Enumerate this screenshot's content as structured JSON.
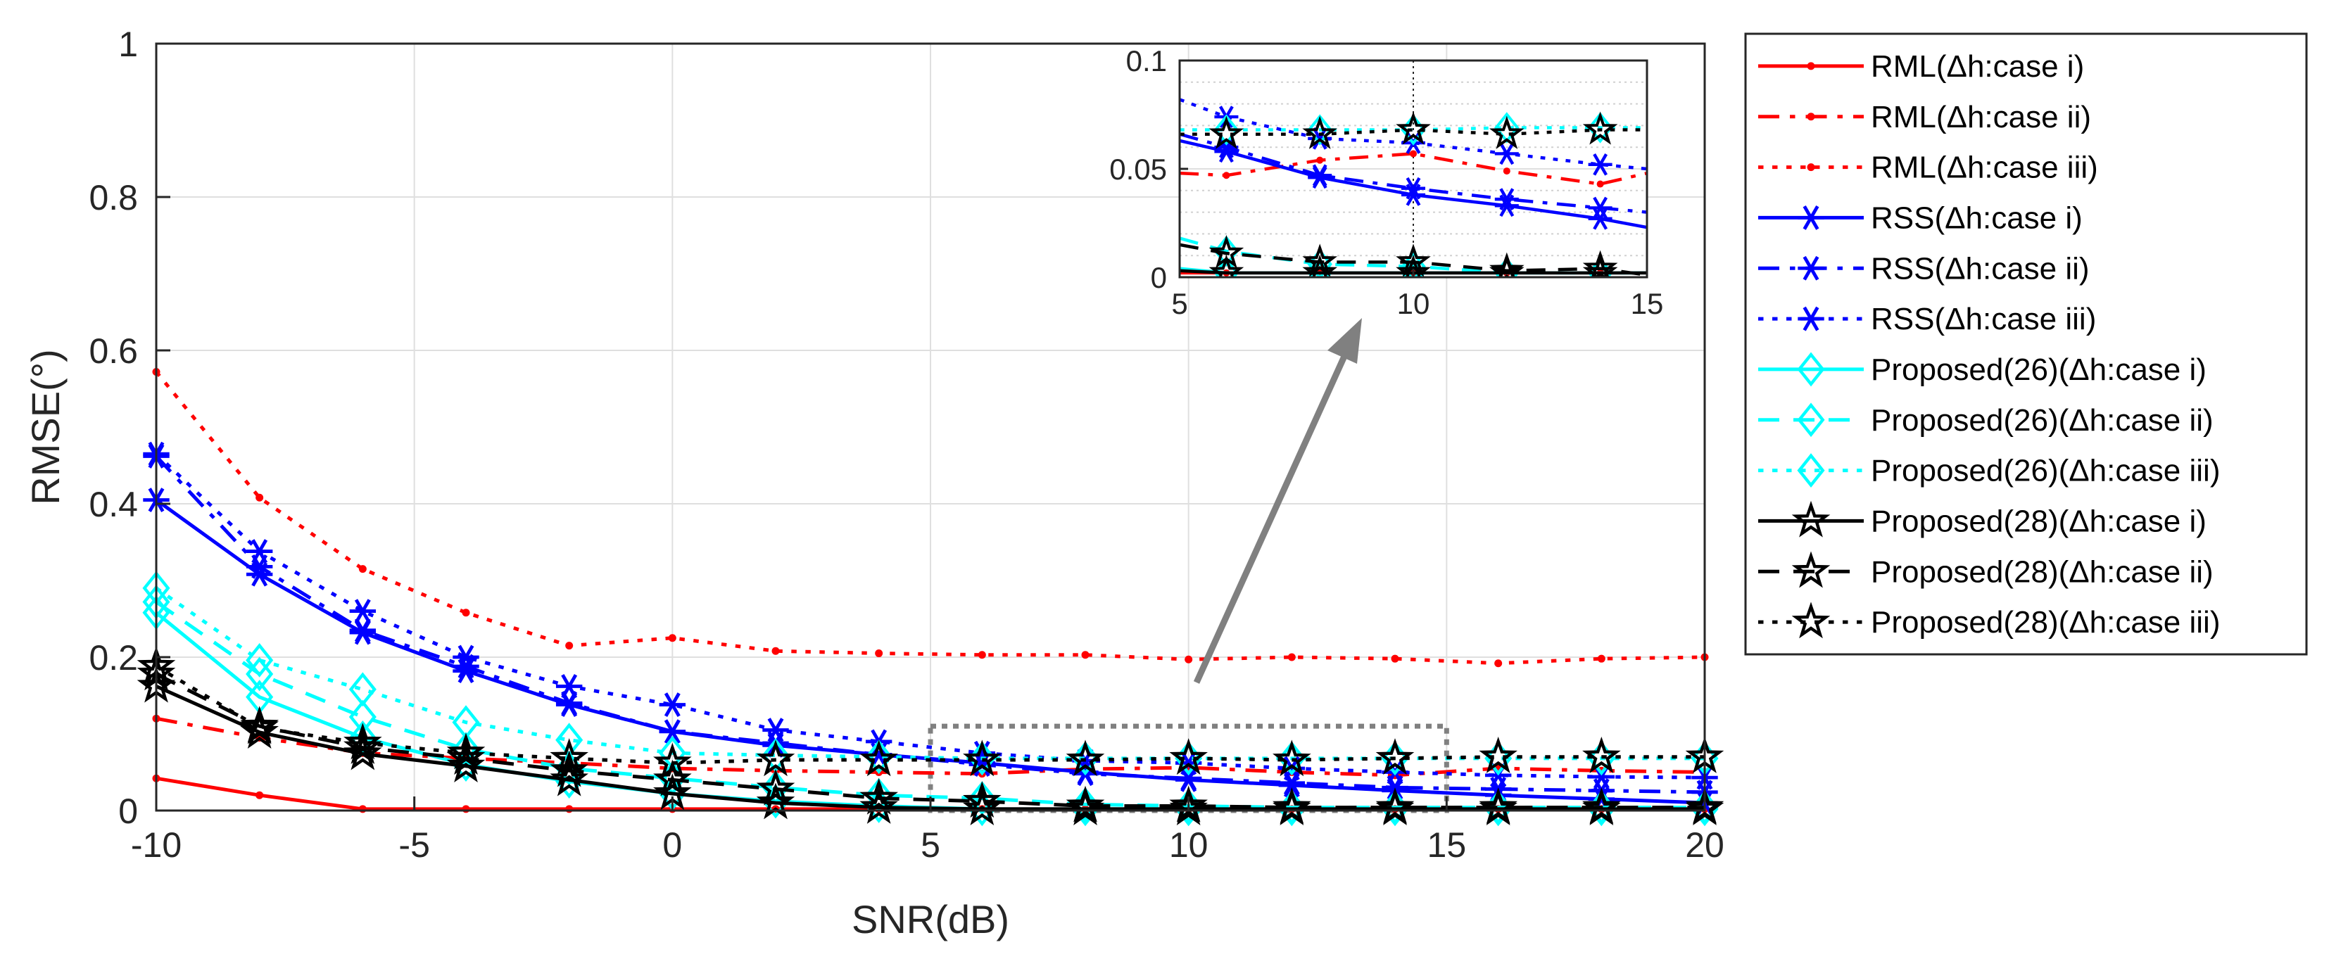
{
  "chart_data": {
    "type": "line",
    "xlabel": "SNR(dB)",
    "ylabel": "RMSE(°)",
    "xlim": [
      -10,
      20
    ],
    "ylim": [
      0,
      1
    ],
    "xticks": [
      -10,
      -5,
      0,
      5,
      10,
      15,
      20
    ],
    "yticks": [
      0,
      0.2,
      0.4,
      0.6,
      0.8,
      1
    ],
    "xtick_labels": [
      "-10",
      "-5",
      "0",
      "5",
      "10",
      "15",
      "20"
    ],
    "ytick_labels": [
      "0",
      "0.2",
      "0.4",
      "0.6",
      "0.8",
      "1"
    ],
    "grid": true,
    "legend_position": "outside-right",
    "x": [
      -10,
      -8,
      -6,
      -4,
      -2,
      0,
      2,
      4,
      6,
      8,
      10,
      12,
      14,
      16,
      18,
      20
    ],
    "series": [
      {
        "name": "RML(Δh:case i)",
        "color": "#ff0000",
        "line": "solid",
        "marker": "dot",
        "values": [
          0.042,
          0.02,
          0.002,
          0.002,
          0.002,
          0.002,
          0.002,
          0.002,
          0.002,
          0.002,
          0.002,
          0.002,
          0.002,
          0.002,
          0.002,
          0.002
        ]
      },
      {
        "name": "RML(Δh:case ii)",
        "color": "#ff0000",
        "line": "dashdot",
        "marker": "dot",
        "values": [
          0.12,
          0.095,
          0.075,
          0.068,
          0.062,
          0.055,
          0.052,
          0.05,
          0.048,
          0.054,
          0.056,
          0.05,
          0.046,
          0.055,
          0.052,
          0.05
        ]
      },
      {
        "name": "RML(Δh:case iii)",
        "color": "#ff0000",
        "line": "dotted",
        "marker": "dot",
        "values": [
          0.572,
          0.408,
          0.315,
          0.258,
          0.215,
          0.225,
          0.208,
          0.205,
          0.203,
          0.203,
          0.197,
          0.2,
          0.198,
          0.192,
          0.198,
          0.2
        ]
      },
      {
        "name": "RSS(Δh:case i)",
        "color": "#0000ff",
        "line": "solid",
        "marker": "asterisk",
        "values": [
          0.405,
          0.308,
          0.232,
          0.182,
          0.138,
          0.103,
          0.085,
          0.073,
          0.062,
          0.05,
          0.04,
          0.033,
          0.026,
          0.02,
          0.015,
          0.01
        ]
      },
      {
        "name": "RSS(Δh:case ii)",
        "color": "#0000ff",
        "line": "dashdot",
        "marker": "asterisk",
        "values": [
          0.462,
          0.318,
          0.235,
          0.188,
          0.14,
          0.103,
          0.088,
          0.073,
          0.06,
          0.048,
          0.042,
          0.036,
          0.03,
          0.028,
          0.026,
          0.024
        ]
      },
      {
        "name": "RSS(Δh:case iii)",
        "color": "#0000ff",
        "line": "dotted",
        "marker": "asterisk",
        "values": [
          0.465,
          0.338,
          0.26,
          0.2,
          0.162,
          0.138,
          0.105,
          0.09,
          0.075,
          0.065,
          0.062,
          0.055,
          0.05,
          0.046,
          0.044,
          0.043
        ]
      },
      {
        "name": "Proposed(26)(Δh:case i)",
        "color": "#00ffff",
        "line": "solid",
        "marker": "diamond",
        "values": [
          0.258,
          0.148,
          0.095,
          0.06,
          0.038,
          0.022,
          0.012,
          0.006,
          0.002,
          0.002,
          0.002,
          0.002,
          0.002,
          0.002,
          0.002,
          0.002
        ]
      },
      {
        "name": "Proposed(26)(Δh:case ii)",
        "color": "#00ffff",
        "line": "dashed",
        "marker": "diamond",
        "values": [
          0.272,
          0.178,
          0.122,
          0.08,
          0.055,
          0.042,
          0.03,
          0.02,
          0.016,
          0.008,
          0.006,
          0.004,
          0.004,
          0.004,
          0.004,
          0.004
        ]
      },
      {
        "name": "Proposed(26)(Δh:case iii)",
        "color": "#00ffff",
        "line": "dotted",
        "marker": "diamond",
        "values": [
          0.29,
          0.196,
          0.158,
          0.115,
          0.092,
          0.075,
          0.072,
          0.07,
          0.068,
          0.068,
          0.068,
          0.068,
          0.068,
          0.068,
          0.068,
          0.068
        ]
      },
      {
        "name": "Proposed(28)(Δh:case i)",
        "color": "#000000",
        "line": "solid",
        "marker": "star",
        "values": [
          0.162,
          0.102,
          0.074,
          0.058,
          0.04,
          0.022,
          0.01,
          0.004,
          0.002,
          0.002,
          0.002,
          0.002,
          0.002,
          0.002,
          0.002,
          0.002
        ]
      },
      {
        "name": "Proposed(28)(Δh:case ii)",
        "color": "#000000",
        "line": "dashed",
        "marker": "star",
        "values": [
          0.178,
          0.11,
          0.082,
          0.068,
          0.052,
          0.04,
          0.028,
          0.016,
          0.012,
          0.006,
          0.006,
          0.004,
          0.004,
          0.004,
          0.004,
          0.004
        ]
      },
      {
        "name": "Proposed(28)(Δh:case iii)",
        "color": "#000000",
        "line": "dotted",
        "marker": "star",
        "values": [
          0.188,
          0.108,
          0.088,
          0.075,
          0.068,
          0.062,
          0.066,
          0.066,
          0.066,
          0.066,
          0.068,
          0.066,
          0.068,
          0.07,
          0.07,
          0.07
        ]
      }
    ],
    "inset": {
      "xlim": [
        5,
        15
      ],
      "ylim": [
        0,
        0.1
      ],
      "xticks": [
        5,
        10,
        15
      ],
      "yticks": [
        0,
        0.05,
        0.1
      ],
      "xtick_labels": [
        "5",
        "10",
        "15"
      ],
      "ytick_labels": [
        "0",
        "0.05",
        "0.1"
      ],
      "zoom_box": {
        "x": [
          5,
          15
        ],
        "y": [
          0,
          0.11
        ]
      },
      "series_overrides": {
        "RSS(Δh:case iii)": {
          "x": [
            5,
            6,
            8,
            10,
            12,
            14,
            15
          ],
          "values": [
            0.082,
            0.074,
            0.064,
            0.062,
            0.057,
            0.052,
            0.05
          ]
        },
        "RSS(Δh:case i)": {
          "x": [
            5,
            6,
            8,
            10,
            12,
            14,
            15
          ],
          "values": [
            0.063,
            0.058,
            0.046,
            0.038,
            0.033,
            0.027,
            0.023
          ]
        },
        "RSS(Δh:case ii)": {
          "x": [
            5,
            6,
            8,
            10,
            12,
            14,
            15
          ],
          "values": [
            0.066,
            0.06,
            0.047,
            0.041,
            0.036,
            0.032,
            0.03
          ]
        },
        "RML(Δh:case ii)": {
          "x": [
            5,
            6,
            8,
            10,
            12,
            14,
            15
          ],
          "values": [
            0.048,
            0.047,
            0.054,
            0.057,
            0.049,
            0.043,
            0.048
          ]
        },
        "Proposed(26)(Δh:case ii)": {
          "x": [
            5,
            6,
            8,
            10,
            12,
            14,
            15
          ],
          "values": [
            0.018,
            0.012,
            0.006,
            0.005,
            0.002,
            0.002,
            0.002
          ]
        },
        "Proposed(28)(Δh:case ii)": {
          "x": [
            5,
            6,
            8,
            10,
            12,
            14,
            15
          ],
          "values": [
            0.015,
            0.011,
            0.007,
            0.007,
            0.003,
            0.004,
            0.001
          ]
        },
        "Proposed(28)(Δh:case iii)": {
          "x": [
            5,
            6,
            8,
            10,
            12,
            14,
            15
          ],
          "values": [
            0.066,
            0.066,
            0.066,
            0.068,
            0.066,
            0.068,
            0.068
          ]
        },
        "Proposed(26)(Δh:case iii)": {
          "x": [
            5,
            6,
            8,
            10,
            12,
            14,
            15
          ],
          "values": [
            0.068,
            0.068,
            0.068,
            0.068,
            0.069,
            0.069,
            0.069
          ]
        }
      }
    }
  }
}
